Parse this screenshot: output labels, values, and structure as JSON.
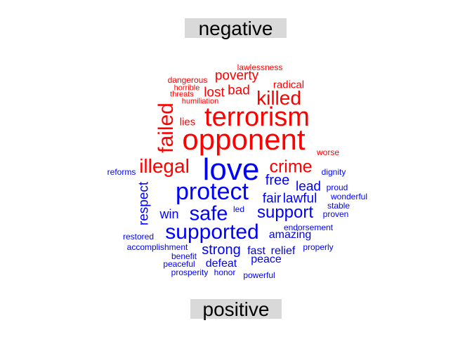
{
  "labels": {
    "top": "negative",
    "bottom": "positive"
  },
  "colors": {
    "negative": "#ff0000",
    "positive": "#0000ff",
    "label_bg": "#d9d9d9"
  },
  "words": [
    {
      "text": "lawlessness",
      "group": "negative"
    },
    {
      "text": "poverty",
      "group": "negative"
    },
    {
      "text": "dangerous",
      "group": "negative"
    },
    {
      "text": "radical",
      "group": "negative"
    },
    {
      "text": "horrible",
      "group": "negative"
    },
    {
      "text": "bad",
      "group": "negative"
    },
    {
      "text": "lost",
      "group": "negative"
    },
    {
      "text": "threats",
      "group": "negative"
    },
    {
      "text": "killed",
      "group": "negative"
    },
    {
      "text": "humiliation",
      "group": "negative"
    },
    {
      "text": "failed",
      "group": "negative"
    },
    {
      "text": "terrorism",
      "group": "negative"
    },
    {
      "text": "lies",
      "group": "negative"
    },
    {
      "text": "opponent",
      "group": "negative"
    },
    {
      "text": "worse",
      "group": "negative"
    },
    {
      "text": "illegal",
      "group": "negative"
    },
    {
      "text": "crime",
      "group": "negative"
    },
    {
      "text": "love",
      "group": "positive"
    },
    {
      "text": "reforms",
      "group": "positive"
    },
    {
      "text": "dignity",
      "group": "positive"
    },
    {
      "text": "free",
      "group": "positive"
    },
    {
      "text": "lead",
      "group": "positive"
    },
    {
      "text": "proud",
      "group": "positive"
    },
    {
      "text": "protect",
      "group": "positive"
    },
    {
      "text": "respect",
      "group": "positive"
    },
    {
      "text": "fair",
      "group": "positive"
    },
    {
      "text": "lawful",
      "group": "positive"
    },
    {
      "text": "wonderful",
      "group": "positive"
    },
    {
      "text": "stable",
      "group": "positive"
    },
    {
      "text": "win",
      "group": "positive"
    },
    {
      "text": "safe",
      "group": "positive"
    },
    {
      "text": "led",
      "group": "positive"
    },
    {
      "text": "support",
      "group": "positive"
    },
    {
      "text": "proven",
      "group": "positive"
    },
    {
      "text": "endorsement",
      "group": "positive"
    },
    {
      "text": "supported",
      "group": "positive"
    },
    {
      "text": "restored",
      "group": "positive"
    },
    {
      "text": "amazing",
      "group": "positive"
    },
    {
      "text": "accomplishment",
      "group": "positive"
    },
    {
      "text": "strong",
      "group": "positive"
    },
    {
      "text": "properly",
      "group": "positive"
    },
    {
      "text": "fast",
      "group": "positive"
    },
    {
      "text": "relief",
      "group": "positive"
    },
    {
      "text": "benefit",
      "group": "positive"
    },
    {
      "text": "peace",
      "group": "positive"
    },
    {
      "text": "peaceful",
      "group": "positive"
    },
    {
      "text": "defeat",
      "group": "positive"
    },
    {
      "text": "prosperity",
      "group": "positive"
    },
    {
      "text": "honor",
      "group": "positive"
    },
    {
      "text": "powerful",
      "group": "positive"
    }
  ]
}
